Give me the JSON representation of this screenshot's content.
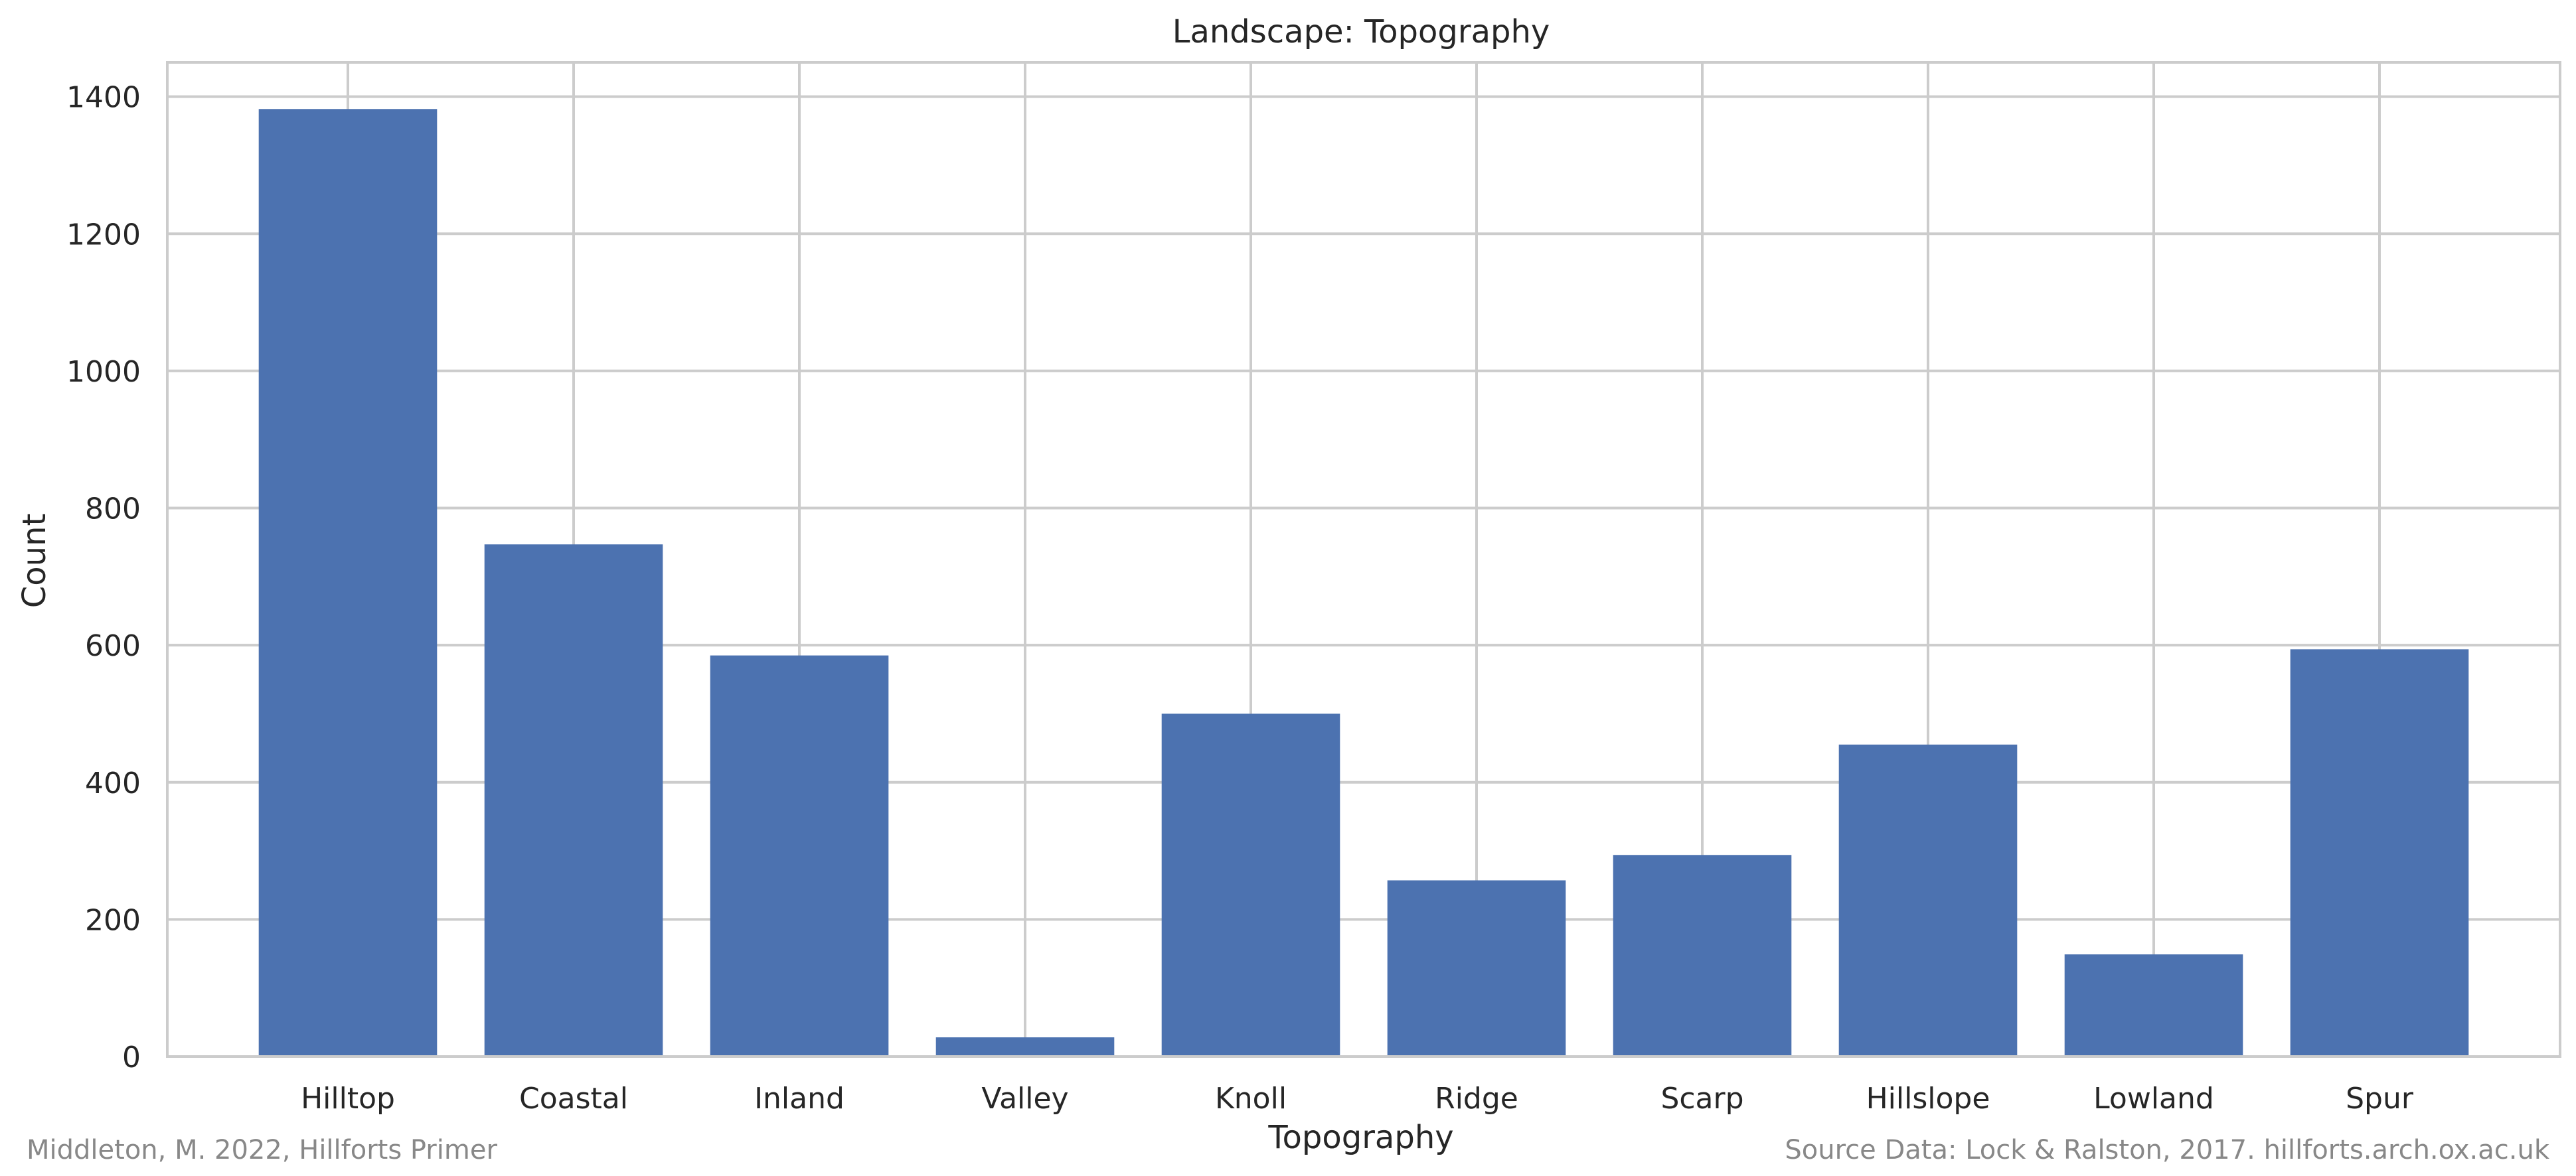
{
  "chart_data": {
    "type": "bar",
    "title": "Landscape: Topography",
    "xlabel": "Topography",
    "ylabel": "Count",
    "categories": [
      "Hilltop",
      "Coastal",
      "Inland",
      "Valley",
      "Knoll",
      "Ridge",
      "Scarp",
      "Hillslope",
      "Lowland",
      "Spur"
    ],
    "values": [
      1382,
      747,
      585,
      28,
      500,
      257,
      294,
      455,
      149,
      594
    ],
    "ylim": [
      0,
      1450
    ],
    "yticks": [
      0,
      200,
      400,
      600,
      800,
      1000,
      1200,
      1400
    ],
    "grid": true,
    "bar_color": "#4c72b0",
    "grid_color": "#cccccc"
  },
  "footer": {
    "credit_left": "Middleton, M. 2022, Hillforts Primer",
    "credit_right": "Source Data: Lock & Ralston, 2017. hillforts.arch.ox.ac.uk"
  }
}
